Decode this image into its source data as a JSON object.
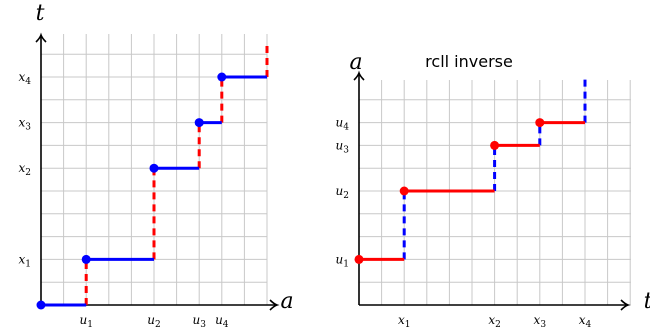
{
  "chart_data": [
    {
      "type": "line",
      "title": "",
      "xlabel": "a",
      "ylabel": "t",
      "xlim": [
        0,
        10
      ],
      "ylim": [
        0,
        11
      ],
      "grid": true,
      "x_ticks": [
        {
          "value": 2,
          "label": "u1"
        },
        {
          "value": 5,
          "label": "u2"
        },
        {
          "value": 7,
          "label": "u3"
        },
        {
          "value": 8,
          "label": "u4"
        }
      ],
      "y_ticks": [
        {
          "value": 2,
          "label": "x1"
        },
        {
          "value": 6,
          "label": "x2"
        },
        {
          "value": 8,
          "label": "x3"
        },
        {
          "value": 10,
          "label": "x4"
        }
      ],
      "horizontal_color": "#0000ff",
      "jump_color": "#ff0000",
      "steps": [
        {
          "x_start": 0,
          "x_end": 2,
          "y": 0
        },
        {
          "x_start": 2,
          "x_end": 5,
          "y": 2
        },
        {
          "x_start": 5,
          "x_end": 7,
          "y": 6
        },
        {
          "x_start": 7,
          "x_end": 8,
          "y": 8
        },
        {
          "x_start": 8,
          "x_end": 10,
          "y": 10
        }
      ],
      "jumps": [
        {
          "x": 2,
          "y_from": 0,
          "y_to": 2
        },
        {
          "x": 5,
          "y_from": 2,
          "y_to": 6
        },
        {
          "x": 7,
          "y_from": 6,
          "y_to": 8
        },
        {
          "x": 8,
          "y_from": 8,
          "y_to": 10
        },
        {
          "x": 10,
          "y_from": 10,
          "y_to": 11.5
        }
      ],
      "points": [
        {
          "x": 0,
          "y": 0
        },
        {
          "x": 2,
          "y": 2
        },
        {
          "x": 5,
          "y": 6
        },
        {
          "x": 7,
          "y": 8
        },
        {
          "x": 8,
          "y": 10
        }
      ]
    },
    {
      "type": "line",
      "title": "rcll inverse",
      "xlabel": "t",
      "ylabel": "a",
      "xlim": [
        0,
        12
      ],
      "ylim": [
        0,
        10
      ],
      "grid": true,
      "x_ticks": [
        {
          "value": 2,
          "label": "x1"
        },
        {
          "value": 6,
          "label": "x2"
        },
        {
          "value": 8,
          "label": "x3"
        },
        {
          "value": 10,
          "label": "x4"
        }
      ],
      "y_ticks": [
        {
          "value": 2,
          "label": "u1"
        },
        {
          "value": 5,
          "label": "u2"
        },
        {
          "value": 7,
          "label": "u3"
        },
        {
          "value": 8,
          "label": "u4"
        }
      ],
      "horizontal_color": "#ff0000",
      "jump_color": "#0000ff",
      "steps": [
        {
          "x_start": 0,
          "x_end": 2,
          "y": 2
        },
        {
          "x_start": 2,
          "x_end": 6,
          "y": 5
        },
        {
          "x_start": 6,
          "x_end": 8,
          "y": 7
        },
        {
          "x_start": 8,
          "x_end": 10,
          "y": 8
        }
      ],
      "jumps": [
        {
          "x": 2,
          "y_from": 2,
          "y_to": 5
        },
        {
          "x": 6,
          "y_from": 5,
          "y_to": 7
        },
        {
          "x": 8,
          "y_from": 7,
          "y_to": 8
        },
        {
          "x": 10,
          "y_from": 8,
          "y_to": 10
        }
      ],
      "points": [
        {
          "x": 0,
          "y": 2
        },
        {
          "x": 2,
          "y": 5
        },
        {
          "x": 6,
          "y": 7
        },
        {
          "x": 8,
          "y": 8
        }
      ]
    }
  ]
}
